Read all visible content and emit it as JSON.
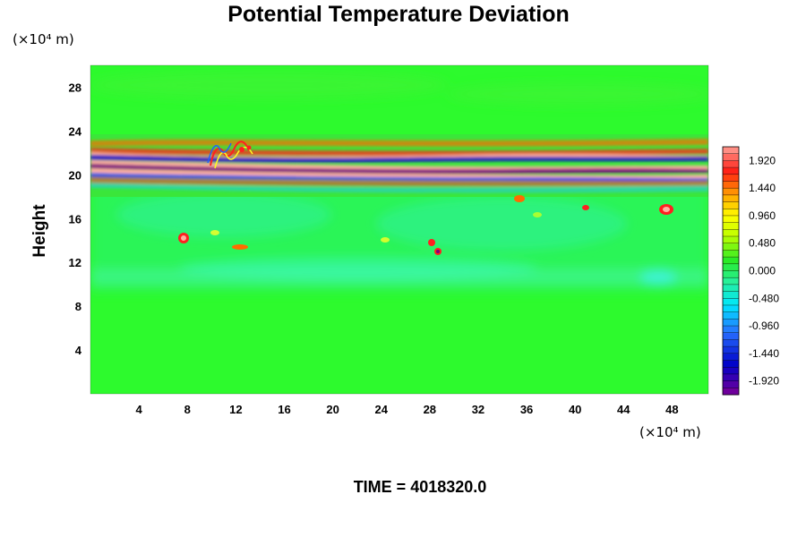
{
  "chart_data": {
    "type": "heatmap",
    "title": "Potential Temperature Deviation",
    "ylabel": "Height",
    "xlabel": "",
    "x_unit_label": "(×10⁴ m)",
    "y_unit_label": "(×10⁴ m)",
    "x_ticks": [
      "4",
      "8",
      "12",
      "16",
      "20",
      "24",
      "28",
      "32",
      "36",
      "40",
      "44",
      "48"
    ],
    "y_ticks": [
      "4",
      "8",
      "12",
      "16",
      "20",
      "24",
      "28"
    ],
    "xlim": [
      0,
      51
    ],
    "ylim": [
      0,
      30
    ],
    "colorbar": {
      "ticks": [
        "1.920",
        "1.440",
        "0.960",
        "0.480",
        "0.000",
        "-0.480",
        "-0.960",
        "-1.440",
        "-1.920"
      ],
      "min": -2.16,
      "max": 2.16,
      "levels": 36
    },
    "footer": "TIME = 4018320.0"
  }
}
